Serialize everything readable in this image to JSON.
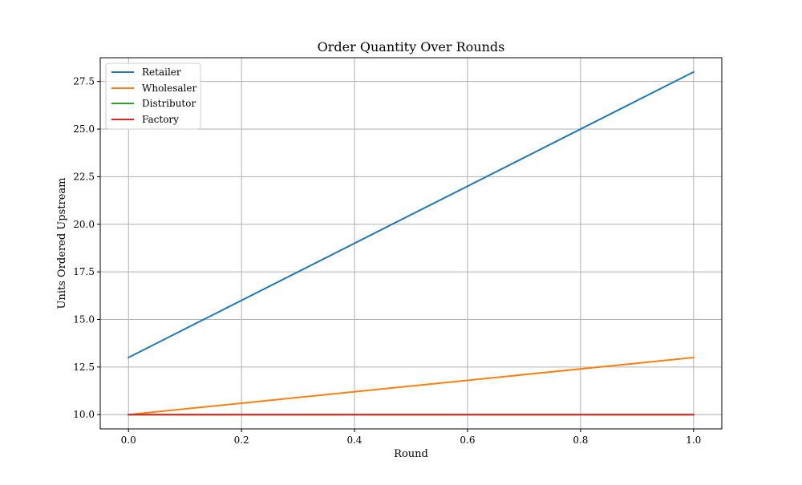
{
  "chart_data": {
    "type": "line",
    "title": "Order Quantity Over Rounds",
    "xlabel": "Round",
    "ylabel": "Units Ordered Upstream",
    "xlim": [
      -0.05,
      1.05
    ],
    "ylim": [
      9.25,
      28.75
    ],
    "grid": true,
    "legend_position": "top-left",
    "x_ticks": [
      0.0,
      0.2,
      0.4,
      0.6,
      0.8,
      1.0
    ],
    "x_tick_labels": [
      "0.0",
      "0.2",
      "0.4",
      "0.6",
      "0.8",
      "1.0"
    ],
    "y_ticks": [
      10.0,
      12.5,
      15.0,
      17.5,
      20.0,
      22.5,
      25.0,
      27.5
    ],
    "y_tick_labels": [
      "10.0",
      "12.5",
      "15.0",
      "17.5",
      "20.0",
      "22.5",
      "25.0",
      "27.5"
    ],
    "x": [
      0,
      1
    ],
    "series": [
      {
        "name": "Retailer",
        "values": [
          13,
          28
        ],
        "color": "#1f77b4"
      },
      {
        "name": "Wholesaler",
        "values": [
          10,
          13
        ],
        "color": "#ff7f0e"
      },
      {
        "name": "Distributor",
        "values": [
          10,
          10
        ],
        "color": "#2ca02c"
      },
      {
        "name": "Factory",
        "values": [
          10,
          10
        ],
        "color": "#d62728"
      }
    ]
  }
}
